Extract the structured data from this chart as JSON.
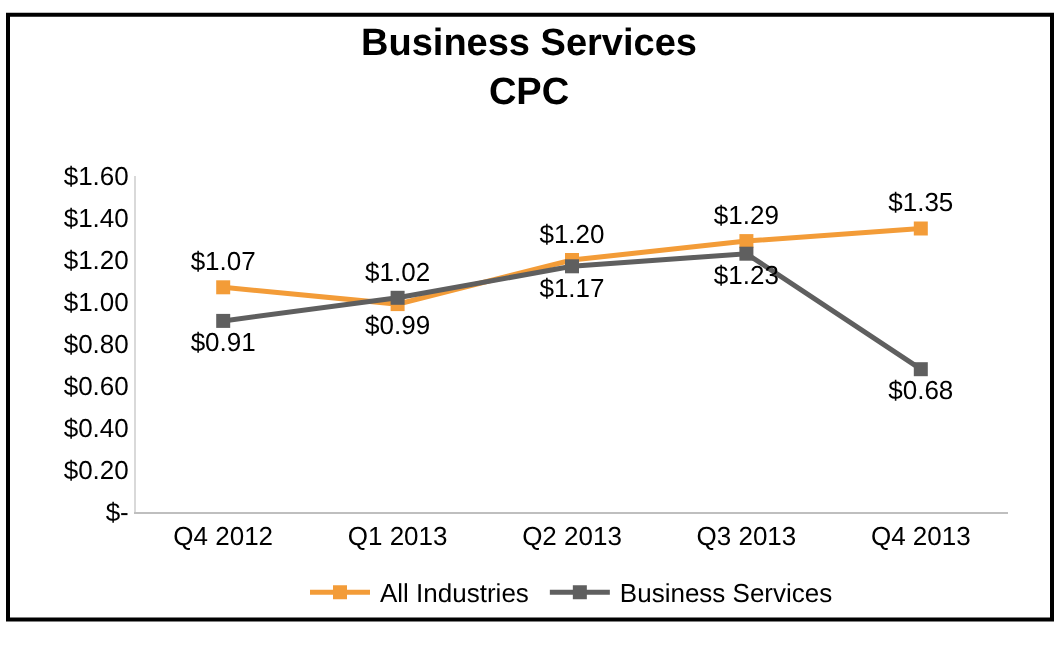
{
  "chart_data": {
    "type": "line",
    "title": "Business Services\nCPC",
    "categories": [
      "Q4 2012",
      "Q1 2013",
      "Q2 2013",
      "Q3 2013",
      "Q4 2013"
    ],
    "series": [
      {
        "name": "All Industries",
        "color": "#f39c38",
        "values": [
          1.07,
          0.99,
          1.2,
          1.29,
          1.35
        ],
        "value_labels": [
          "$1.07",
          "$0.99",
          "$1.20",
          "$1.29",
          "$1.35"
        ]
      },
      {
        "name": "Business Services",
        "color": "#5f5f5f",
        "values": [
          0.91,
          1.02,
          1.17,
          1.23,
          0.68
        ],
        "value_labels": [
          "$0.91",
          "$1.02",
          "$1.17",
          "$1.23",
          "$0.68"
        ]
      }
    ],
    "ylim": [
      0,
      1.6
    ],
    "yticks": [
      {
        "value": 0,
        "label": "$-"
      },
      {
        "value": 0.2,
        "label": "$0.20"
      },
      {
        "value": 0.4,
        "label": "$0.40"
      },
      {
        "value": 0.6,
        "label": "$0.60"
      },
      {
        "value": 0.8,
        "label": "$0.80"
      },
      {
        "value": 1.0,
        "label": "$1.00"
      },
      {
        "value": 1.2,
        "label": "$1.20"
      },
      {
        "value": 1.4,
        "label": "$1.40"
      },
      {
        "value": 1.6,
        "label": "$1.60"
      }
    ],
    "legend": "bottom",
    "marker": "square",
    "line_style": "solid"
  }
}
